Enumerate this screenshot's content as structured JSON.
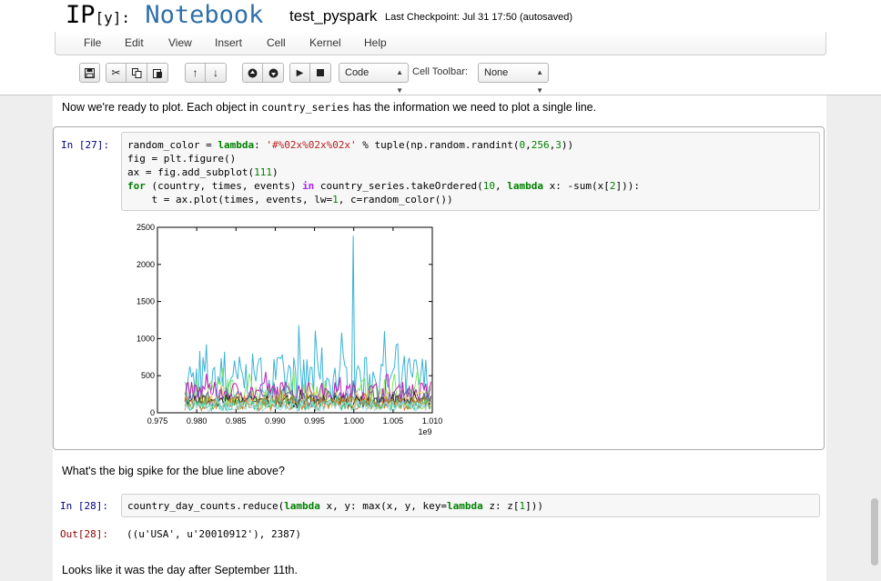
{
  "header": {
    "logo_ip": "IP",
    "logo_y": "[y]:",
    "logo_notebook": "Notebook",
    "notebook_name": "test_pyspark",
    "checkpoint": "Last Checkpoint: Jul 31 17:50 (autosaved)"
  },
  "menu": [
    "File",
    "Edit",
    "View",
    "Insert",
    "Cell",
    "Kernel",
    "Help"
  ],
  "toolbar": {
    "save_icon": "floppy-disk-icon",
    "cut_icon": "scissors-icon",
    "copy_icon": "copy-icon",
    "paste_icon": "paste-icon",
    "move_up_icon": "arrow-up-icon",
    "move_down_icon": "arrow-down-icon",
    "run_icon": "play-icon",
    "stop_icon": "stop-icon",
    "cell_type": "Code",
    "cell_toolbar_label": "Cell Toolbar:",
    "cell_toolbar_value": "None"
  },
  "cells": {
    "md1_before": "Now we're ready to plot. Each object in ",
    "md1_code": "country_series",
    "md1_after": " has the information we need to plot a single line.",
    "in27_prompt": "In [27]:",
    "in28_prompt": "In [28]:",
    "out28_prompt": "Out[28]:",
    "out28_text": "((u'USA', u'20010912'), 2387)",
    "md2": "What's the big spike for the blue line above?",
    "md3": "Looks like it was the day after September 11th."
  },
  "chart_data": {
    "type": "line",
    "title": "",
    "xlabel": "",
    "ylabel": "",
    "x_offset_label": "1e9",
    "xlim": [
      0.975,
      1.01
    ],
    "ylim": [
      0,
      2500
    ],
    "x_ticks": [
      "0.975",
      "0.980",
      "0.985",
      "0.990",
      "0.995",
      "1.000",
      "1.005",
      "1.010"
    ],
    "y_ticks": [
      "0",
      "500",
      "1000",
      "1500",
      "2000",
      "2500"
    ],
    "x_range_data": [
      0.9785,
      1.0098
    ],
    "grid": false,
    "legend": "none",
    "series": [
      {
        "color": "#3bb3d6",
        "base": 450,
        "amp": 500,
        "peak": 2387,
        "peak_x": 1.0
      },
      {
        "color": "#7ce860",
        "base": 250,
        "amp": 300
      },
      {
        "color": "#c41cb8",
        "base": 280,
        "amp": 200
      },
      {
        "color": "#e8d46a",
        "base": 180,
        "amp": 160
      },
      {
        "color": "#6a60a8",
        "base": 200,
        "amp": 160
      },
      {
        "color": "#2e2a1a",
        "base": 150,
        "amp": 120
      },
      {
        "color": "#e07828",
        "base": 120,
        "amp": 130
      },
      {
        "color": "#9e9e30",
        "base": 130,
        "amp": 120
      },
      {
        "color": "#40c8a0",
        "base": 100,
        "amp": 110
      },
      {
        "color": "#a0e0e8",
        "base": 90,
        "amp": 100
      }
    ]
  }
}
